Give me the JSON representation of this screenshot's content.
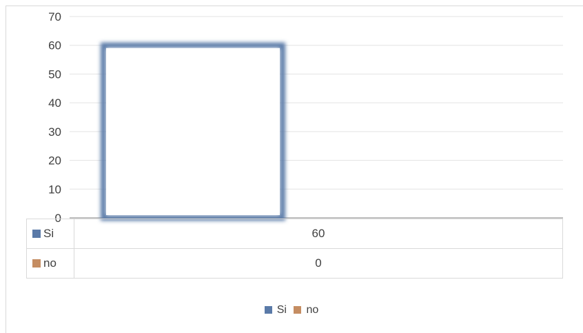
{
  "chart_data": {
    "type": "bar",
    "categories": [
      ""
    ],
    "series": [
      {
        "name": "Si",
        "values": [
          60
        ],
        "color": "#5a7aa8"
      },
      {
        "name": "no",
        "values": [
          0
        ],
        "color": "#c58d62"
      }
    ],
    "ylim": [
      0,
      70
    ],
    "yticks": [
      0,
      10,
      20,
      30,
      40,
      50,
      60,
      70
    ],
    "grid": true,
    "data_table": true,
    "legend_position": "bottom"
  }
}
